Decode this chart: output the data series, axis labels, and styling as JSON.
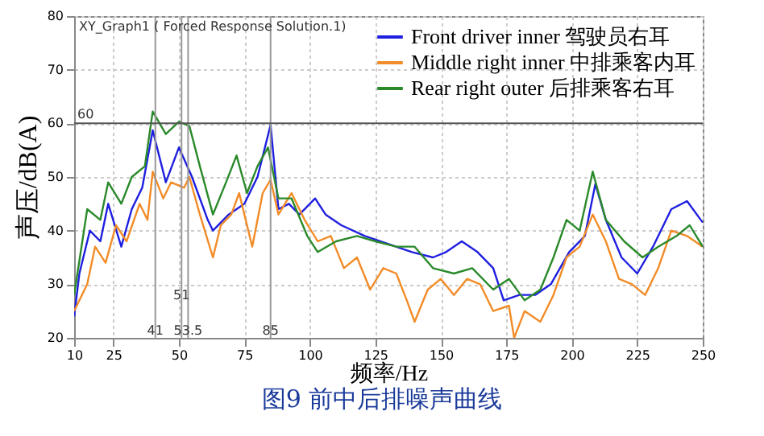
{
  "chart_data": {
    "type": "line",
    "title": "XY_Graph1 ( Forced Response Solution.1)",
    "xlabel": "频率/Hz",
    "ylabel": "声压/dB(A)",
    "annotations": [
      "图9 前中后排噪声曲线"
    ],
    "xlim": [
      10,
      250
    ],
    "xticks": [
      10,
      25,
      50,
      75,
      100,
      125,
      150,
      175,
      200,
      225,
      250
    ],
    "ylim": [
      20,
      80
    ],
    "yticks": [
      20,
      30,
      40,
      50,
      60,
      70,
      80
    ],
    "grid": true,
    "legend": "top right",
    "line_style": "solid",
    "marker": "none",
    "ref_lines": [
      {
        "axis": "x",
        "value": 41,
        "label": "41"
      },
      {
        "axis": "x",
        "value": 51,
        "label": "51"
      },
      {
        "axis": "x",
        "value": 53.5,
        "label": "53.5"
      },
      {
        "axis": "x",
        "value": 85,
        "label": "85"
      },
      {
        "axis": "y",
        "value": 60,
        "label": "60"
      }
    ],
    "series": [
      {
        "name": "Front driver inner 驾驶员右耳",
        "color": "#1f1fe0",
        "x": [
          10,
          12,
          16,
          20,
          23,
          28,
          32,
          36,
          40,
          45,
          50,
          55,
          61,
          63,
          69,
          75,
          80,
          85,
          88,
          92,
          96,
          102,
          106,
          112,
          121,
          130,
          139,
          147,
          152,
          158,
          164,
          170,
          174,
          180,
          186,
          192,
          199,
          205,
          209,
          213,
          219,
          225,
          231,
          238,
          244,
          250
        ],
        "values": [
          24,
          32,
          40,
          38,
          45,
          37,
          44,
          48,
          58.7,
          49,
          55.5,
          50,
          42,
          40,
          43,
          45,
          50,
          59.7,
          44,
          45,
          43,
          46,
          43,
          41,
          39,
          37.5,
          36,
          35,
          36,
          38,
          36,
          33,
          27,
          28,
          28,
          30,
          36,
          39,
          48.7,
          42,
          35,
          32,
          37,
          44,
          45.5,
          41.5
        ]
      },
      {
        "name": "Middle right inner 中排乘客内耳",
        "color": "#f28c28",
        "x": [
          10,
          15,
          18,
          22,
          26,
          30,
          35,
          38,
          40,
          44,
          47,
          52,
          54,
          58,
          63,
          66,
          70,
          73,
          78,
          82,
          85,
          88,
          93,
          98,
          103,
          108,
          113,
          118,
          123,
          128,
          133,
          137,
          140,
          145,
          150,
          155,
          160,
          165,
          170,
          176,
          178,
          182,
          188,
          193,
          198,
          203,
          208,
          213,
          218,
          223,
          228,
          233,
          238,
          244,
          250
        ],
        "values": [
          25,
          30,
          37,
          34,
          41,
          38,
          45,
          42,
          51,
          46,
          49,
          48,
          50,
          43,
          35,
          41,
          43,
          47,
          37,
          47,
          49.5,
          43,
          47,
          42,
          38,
          39,
          33,
          35,
          29,
          33,
          32,
          27,
          23,
          29,
          31,
          28,
          31,
          30,
          25,
          26,
          20,
          25,
          23,
          28,
          35,
          37,
          43,
          38,
          31,
          30,
          28,
          33,
          40,
          39,
          37
        ]
      },
      {
        "name": "Rear right outer 后排乘客右耳",
        "color": "#2a8a2a",
        "x": [
          10,
          15,
          20,
          23,
          28,
          32,
          37,
          40,
          45,
          50,
          54,
          58,
          63,
          68,
          72,
          76,
          80,
          84,
          88,
          93,
          99,
          103,
          110,
          118,
          125,
          133,
          140,
          147,
          155,
          162,
          170,
          176,
          182,
          188,
          193,
          198,
          203,
          208,
          213,
          220,
          227,
          233,
          240,
          245,
          250
        ],
        "values": [
          28,
          44,
          42,
          49,
          45,
          50,
          52,
          62.2,
          58,
          60.3,
          59.5,
          52,
          43,
          49,
          54,
          47,
          52,
          55.5,
          46,
          46,
          39,
          36,
          38,
          39,
          38,
          37,
          37,
          33,
          32,
          33,
          29,
          31,
          27,
          29,
          35,
          42,
          40,
          51,
          42,
          38,
          35,
          37,
          39,
          41,
          37
        ]
      }
    ]
  }
}
